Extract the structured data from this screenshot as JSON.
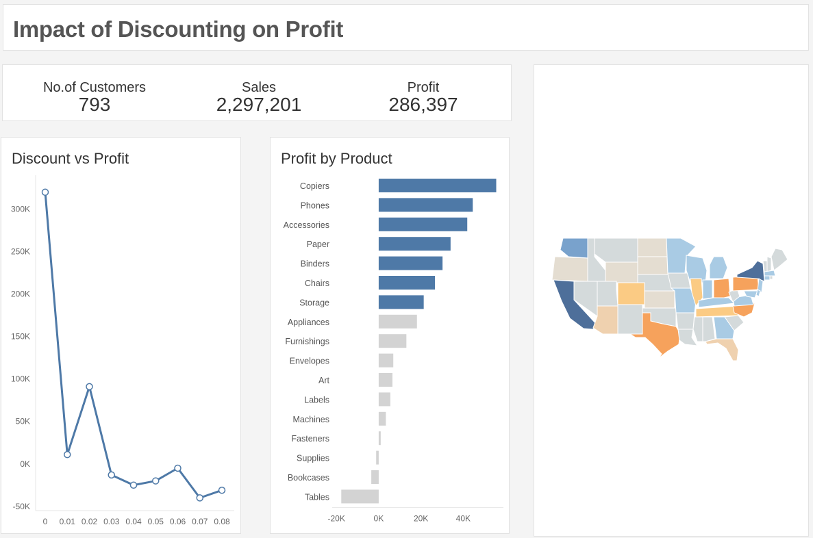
{
  "dashboard": {
    "title": "Impact of Discounting on Profit"
  },
  "kpis": {
    "customers": {
      "label": "No.of Customers",
      "value": "793"
    },
    "sales": {
      "label": "Sales",
      "value": "2,297,201"
    },
    "profit": {
      "label": "Profit",
      "value": "286,397"
    }
  },
  "colors": {
    "positive": "#4e79a7",
    "negative": "#d3d3d3",
    "line": "#4e79a7",
    "map_dark_blue": "#4e6f9a",
    "map_mid_blue": "#79a2cc",
    "map_light_blue": "#a9cbe4",
    "map_grey": "#d4dadb",
    "map_beige": "#e4ddd1",
    "map_tan": "#efd1af",
    "map_light_orange": "#fbcb84",
    "map_orange": "#f6a25c"
  },
  "chart_data": [
    {
      "type": "line",
      "title": "Discount vs Profit",
      "x": [
        "0",
        "0.01",
        "0.02",
        "0.03",
        "0.04",
        "0.05",
        "0.06",
        "0.07",
        "0.08"
      ],
      "series": [
        {
          "values": [
            320000,
            11000,
            91000,
            -13000,
            -25000,
            -20000,
            -5000,
            -40000,
            -31000
          ]
        }
      ],
      "yticks": [
        -50000,
        0,
        50000,
        100000,
        150000,
        200000,
        250000,
        300000
      ],
      "ytick_labels": [
        "-50K",
        "0K",
        "50K",
        "100K",
        "150K",
        "200K",
        "250K",
        "300K"
      ],
      "ylim": [
        -55000,
        340000
      ],
      "xlabel": "",
      "ylabel": ""
    },
    {
      "type": "bar",
      "orientation": "horizontal",
      "title": "Profit by Product",
      "categories": [
        "Copiers",
        "Phones",
        "Accessories",
        "Paper",
        "Binders",
        "Chairs",
        "Storage",
        "Appliances",
        "Furnishings",
        "Envelopes",
        "Art",
        "Labels",
        "Machines",
        "Fasteners",
        "Supplies",
        "Bookcases",
        "Tables"
      ],
      "values": [
        55600,
        44500,
        41900,
        34000,
        30200,
        26600,
        21300,
        18100,
        13100,
        6900,
        6500,
        5500,
        3400,
        950,
        -1200,
        -3500,
        -17700
      ],
      "xticks": [
        -20000,
        0,
        20000,
        40000
      ],
      "xtick_labels": [
        "-20K",
        "0K",
        "20K",
        "40K"
      ],
      "xlim": [
        -22000,
        59000
      ],
      "xlabel": "",
      "ylabel": ""
    }
  ]
}
